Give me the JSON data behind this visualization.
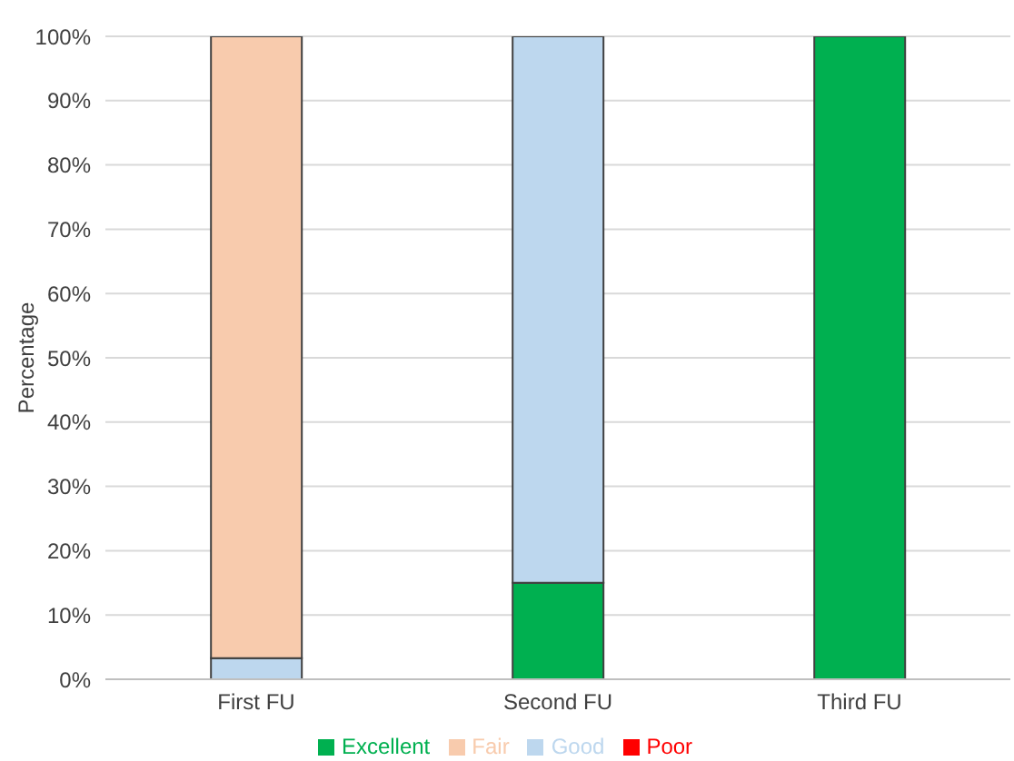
{
  "chart_data": {
    "type": "bar",
    "stacked": true,
    "ylabel": "Percentage",
    "categories": [
      "First FU",
      "Second FU",
      "Third FU"
    ],
    "series": [
      {
        "name": "Excellent",
        "color": "#00b050",
        "values": [
          0,
          15,
          100
        ]
      },
      {
        "name": "Good",
        "color": "#bdd7ee",
        "values": [
          3.3,
          85,
          0
        ]
      },
      {
        "name": "Fair",
        "color": "#f8cbad",
        "values": [
          96.7,
          0,
          0
        ]
      },
      {
        "name": "Poor",
        "color": "#ff0000",
        "values": [
          0,
          0,
          0
        ]
      }
    ],
    "ylim": [
      0,
      100
    ],
    "yticks": [
      {
        "value": 0,
        "label": "0%"
      },
      {
        "value": 10,
        "label": "10%"
      },
      {
        "value": 20,
        "label": "20%"
      },
      {
        "value": 30,
        "label": "30%"
      },
      {
        "value": 40,
        "label": "40%"
      },
      {
        "value": 50,
        "label": "50%"
      },
      {
        "value": 60,
        "label": "60%"
      },
      {
        "value": 70,
        "label": "70%"
      },
      {
        "value": 80,
        "label": "80%"
      },
      {
        "value": 90,
        "label": "90%"
      },
      {
        "value": 100,
        "label": "100%"
      }
    ],
    "grid": "y",
    "legend": "bottom"
  }
}
